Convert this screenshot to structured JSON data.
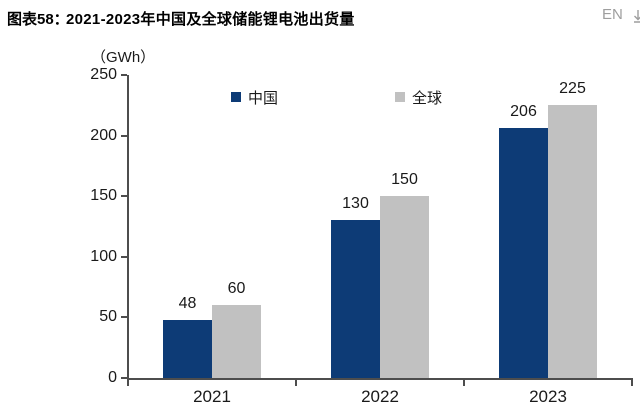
{
  "header": {
    "label": "图表58：",
    "title": "2021-2023年中国及全球储能锂电池出货量",
    "lang_toggle": "EN",
    "edge_icon": "download-icon-clipped"
  },
  "colors": {
    "china_series": "#0d3b76",
    "global_series": "#c1c1c1",
    "axis": "#4d4d4d",
    "text": "#1a1a1a",
    "lang_toggle": "#9e9e9e"
  },
  "chart_data": {
    "type": "bar",
    "title": "2021-2023年中国及全球储能锂电池出货量",
    "unit_label": "（GWh）",
    "categories": [
      "2021",
      "2022",
      "2023"
    ],
    "series": [
      {
        "name": "中国",
        "color": "#0d3b76",
        "values": [
          48,
          130,
          206
        ]
      },
      {
        "name": "全球",
        "color": "#c1c1c1",
        "values": [
          60,
          150,
          225
        ]
      }
    ],
    "ylim": [
      0,
      250
    ],
    "yticks": [
      0,
      50,
      100,
      150,
      200,
      250
    ],
    "grid": false,
    "legend_position": "top",
    "data_labels": true
  }
}
